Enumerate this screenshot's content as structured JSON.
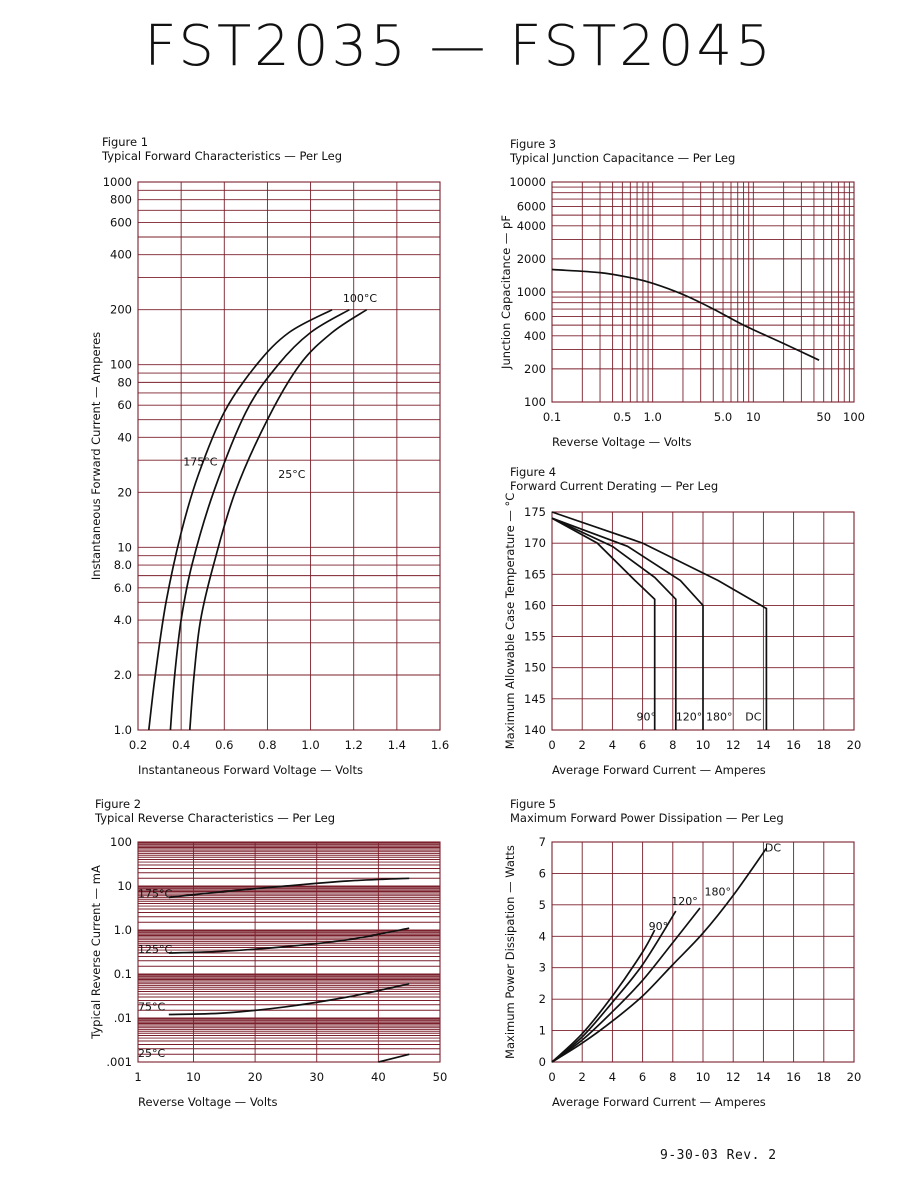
{
  "page": {
    "title": "FST2035 — FST2045",
    "footer": "9-30-03   Rev. 2"
  },
  "chart_data": [
    {
      "id": "fig1",
      "type": "line",
      "figure_label": "Figure 1",
      "title": "Typical Forward Characteristics — Per Leg",
      "xlabel": "Instantaneous Forward Voltage — Volts",
      "ylabel": "Instantaneous Forward Current — Amperes",
      "xscale": "linear",
      "yscale": "log",
      "xlim": [
        0.2,
        1.6
      ],
      "ylim": [
        1,
        1000
      ],
      "xticks": [
        0.2,
        0.4,
        0.6,
        0.8,
        1.0,
        1.2,
        1.4,
        1.6
      ],
      "xtick_labels": [
        "0.2",
        "0.4",
        "0.6",
        "0.8",
        "1.0",
        "1.2",
        "1.4",
        "1.6"
      ],
      "yticks": [
        1,
        2,
        4,
        6,
        8,
        10,
        20,
        40,
        60,
        80,
        100,
        200,
        400,
        600,
        800,
        1000
      ],
      "ytick_labels": [
        "1.0",
        "2.0",
        "4.0",
        "6.0",
        "8.0",
        "10",
        "20",
        "40",
        "60",
        "80",
        "100",
        "200",
        "400",
        "600",
        "800",
        "1000"
      ],
      "grid": true,
      "series": [
        {
          "label": "175°C",
          "label_at": [
            0.22,
            0.41,
            28
          ],
          "points": [
            [
              0.25,
              1
            ],
            [
              0.28,
              2
            ],
            [
              0.33,
              5
            ],
            [
              0.4,
              12
            ],
            [
              0.48,
              25
            ],
            [
              0.6,
              55
            ],
            [
              0.75,
              100
            ],
            [
              0.9,
              150
            ],
            [
              1.1,
              200
            ]
          ]
        },
        {
          "label": "100°C",
          "label_at": [
            0.22,
            1.15,
            220
          ],
          "points": [
            [
              0.35,
              1
            ],
            [
              0.37,
              2
            ],
            [
              0.4,
              4
            ],
            [
              0.45,
              8
            ],
            [
              0.55,
              20
            ],
            [
              0.7,
              55
            ],
            [
              0.85,
              100
            ],
            [
              1.0,
              150
            ],
            [
              1.18,
              200
            ]
          ]
        },
        {
          "label": "25°C",
          "label_at": [
            0.22,
            0.85,
            24
          ],
          "points": [
            [
              0.44,
              1
            ],
            [
              0.46,
              2
            ],
            [
              0.49,
              4
            ],
            [
              0.55,
              8
            ],
            [
              0.65,
              20
            ],
            [
              0.8,
              50
            ],
            [
              0.95,
              100
            ],
            [
              1.1,
              150
            ],
            [
              1.26,
              200
            ]
          ]
        }
      ]
    },
    {
      "id": "fig2",
      "type": "line",
      "figure_label": "Figure 2",
      "title": "Typical Reverse Characteristics — Per Leg",
      "xlabel": "Reverse Voltage — Volts",
      "ylabel": "Typical Reverse Current — mA",
      "xscale": "linear",
      "yscale": "log",
      "xlim": [
        1,
        50
      ],
      "ylim": [
        0.001,
        100
      ],
      "xticks": [
        1,
        10,
        20,
        30,
        40,
        50
      ],
      "xtick_labels": [
        "1",
        "10",
        "20",
        "30",
        "40",
        "50"
      ],
      "yticks": [
        0.001,
        0.01,
        0.1,
        1,
        10,
        100
      ],
      "ytick_labels": [
        ".001",
        ".01",
        "0.1",
        "1.0",
        "10",
        "100"
      ],
      "grid": true,
      "series": [
        {
          "label": "175°C",
          "label_at": [
            0.06,
            1,
            5.5
          ],
          "points": [
            [
              6,
              5.5
            ],
            [
              15,
              7.5
            ],
            [
              25,
              10
            ],
            [
              35,
              13
            ],
            [
              45,
              15
            ]
          ]
        },
        {
          "label": "125°C",
          "label_at": [
            0.06,
            1,
            0.3
          ],
          "points": [
            [
              6,
              0.3
            ],
            [
              15,
              0.33
            ],
            [
              25,
              0.42
            ],
            [
              35,
              0.6
            ],
            [
              45,
              1.1
            ]
          ]
        },
        {
          "label": "75°C",
          "label_at": [
            0.06,
            1,
            0.015
          ],
          "points": [
            [
              6,
              0.012
            ],
            [
              15,
              0.013
            ],
            [
              25,
              0.018
            ],
            [
              35,
              0.03
            ],
            [
              45,
              0.06
            ]
          ]
        },
        {
          "label": "25°C",
          "label_at": [
            0.06,
            1,
            0.0013
          ],
          "points": [
            [
              40,
              0.001
            ],
            [
              45,
              0.0015
            ]
          ]
        }
      ]
    },
    {
      "id": "fig3",
      "type": "line",
      "figure_label": "Figure 3",
      "title": "Typical Junction Capacitance — Per Leg",
      "xlabel": "Reverse Voltage — Volts",
      "ylabel": "Junction Capacitance — pF",
      "xscale": "log",
      "yscale": "log",
      "xlim": [
        0.1,
        100
      ],
      "ylim": [
        100,
        10000
      ],
      "xticks": [
        0.1,
        0.5,
        1,
        5,
        10,
        50,
        100
      ],
      "xtick_labels": [
        "0.1",
        "0.5",
        "1.0",
        "5.0",
        "10",
        "50",
        "100"
      ],
      "yticks": [
        100,
        200,
        400,
        600,
        1000,
        2000,
        4000,
        6000,
        10000
      ],
      "ytick_labels": [
        "100",
        "200",
        "400",
        "600",
        "1000",
        "2000",
        "4000",
        "6000",
        "10000"
      ],
      "grid": true,
      "series": [
        {
          "label": "",
          "points": [
            [
              0.1,
              1600
            ],
            [
              0.3,
              1500
            ],
            [
              0.6,
              1350
            ],
            [
              1,
              1200
            ],
            [
              2,
              950
            ],
            [
              4,
              700
            ],
            [
              8,
              500
            ],
            [
              20,
              340
            ],
            [
              45,
              240
            ]
          ]
        }
      ]
    },
    {
      "id": "fig4",
      "type": "line",
      "figure_label": "Figure 4",
      "title": "Forward Current Derating — Per Leg",
      "xlabel": "Average Forward Current — Amperes",
      "ylabel": "Maximum Allowable Case Temperature — °C",
      "xscale": "linear",
      "yscale": "linear",
      "xlim": [
        0,
        20
      ],
      "ylim": [
        140,
        175
      ],
      "xticks": [
        0,
        2,
        4,
        6,
        8,
        10,
        12,
        14,
        16,
        18,
        20
      ],
      "xtick_labels": [
        "0",
        "2",
        "4",
        "6",
        "8",
        "10",
        "12",
        "14",
        "16",
        "18",
        "20"
      ],
      "yticks": [
        140,
        145,
        150,
        155,
        160,
        165,
        170,
        175
      ],
      "ytick_labels": [
        "140",
        "145",
        "150",
        "155",
        "160",
        "165",
        "170",
        "175"
      ],
      "grid": true,
      "series": [
        {
          "label": "90°",
          "label_at": [
            0.2,
            5.6,
            141.5
          ],
          "points": [
            [
              0,
              174
            ],
            [
              3,
              170
            ],
            [
              5.5,
              164
            ],
            [
              6.8,
              161
            ],
            [
              6.8,
              140
            ]
          ]
        },
        {
          "label": "120°",
          "label_at": [
            0.2,
            8.2,
            141.5
          ],
          "points": [
            [
              0,
              174
            ],
            [
              4,
              169.5
            ],
            [
              6.8,
              164.5
            ],
            [
              8.2,
              161
            ],
            [
              8.2,
              140
            ]
          ]
        },
        {
          "label": "180°",
          "label_at": [
            0.2,
            10.2,
            141.5
          ],
          "points": [
            [
              0,
              174
            ],
            [
              5,
              169.5
            ],
            [
              8.5,
              164
            ],
            [
              10,
              160
            ],
            [
              10,
              140
            ]
          ]
        },
        {
          "label": "DC",
          "label_at": [
            0.2,
            12.8,
            141.5
          ],
          "points": [
            [
              0,
              175
            ],
            [
              6,
              170
            ],
            [
              11,
              164
            ],
            [
              14.2,
              159.5
            ],
            [
              14.2,
              140
            ]
          ]
        }
      ]
    },
    {
      "id": "fig5",
      "type": "line",
      "figure_label": "Figure 5",
      "title": "Maximum Forward Power Dissipation — Per Leg",
      "xlabel": "Average Forward Current — Amperes",
      "ylabel": "Maximum Power Dissipation — Watts",
      "xscale": "linear",
      "yscale": "linear",
      "xlim": [
        0,
        20
      ],
      "ylim": [
        0,
        7
      ],
      "xticks": [
        0,
        2,
        4,
        6,
        8,
        10,
        12,
        14,
        16,
        18,
        20
      ],
      "xtick_labels": [
        "0",
        "2",
        "4",
        "6",
        "8",
        "10",
        "12",
        "14",
        "16",
        "18",
        "20"
      ],
      "yticks": [
        0,
        1,
        2,
        3,
        4,
        5,
        6,
        7
      ],
      "ytick_labels": [
        "0",
        "1",
        "2",
        "3",
        "4",
        "5",
        "6",
        "7"
      ],
      "grid": true,
      "series": [
        {
          "label": "90°",
          "label_at": [
            0.2,
            6.4,
            4.2
          ],
          "points": [
            [
              0,
              0
            ],
            [
              2,
              0.9
            ],
            [
              4,
              2.1
            ],
            [
              6,
              3.5
            ],
            [
              6.8,
              4.2
            ]
          ]
        },
        {
          "label": "120°",
          "label_at": [
            0.2,
            7.9,
            5.0
          ],
          "points": [
            [
              0,
              0
            ],
            [
              2,
              0.8
            ],
            [
              4,
              1.9
            ],
            [
              6,
              3.1
            ],
            [
              8.2,
              4.8
            ]
          ]
        },
        {
          "label": "180°",
          "label_at": [
            0.2,
            10.1,
            5.3
          ],
          "points": [
            [
              0,
              0
            ],
            [
              2,
              0.7
            ],
            [
              4,
              1.6
            ],
            [
              6,
              2.6
            ],
            [
              8,
              3.8
            ],
            [
              9.8,
              4.9
            ]
          ]
        },
        {
          "label": "DC",
          "label_at": [
            0.2,
            14.1,
            6.7
          ],
          "points": [
            [
              0,
              0
            ],
            [
              2,
              0.6
            ],
            [
              4,
              1.3
            ],
            [
              6,
              2.1
            ],
            [
              8,
              3.1
            ],
            [
              10,
              4.1
            ],
            [
              12,
              5.3
            ],
            [
              14.2,
              6.8
            ]
          ]
        }
      ]
    }
  ]
}
